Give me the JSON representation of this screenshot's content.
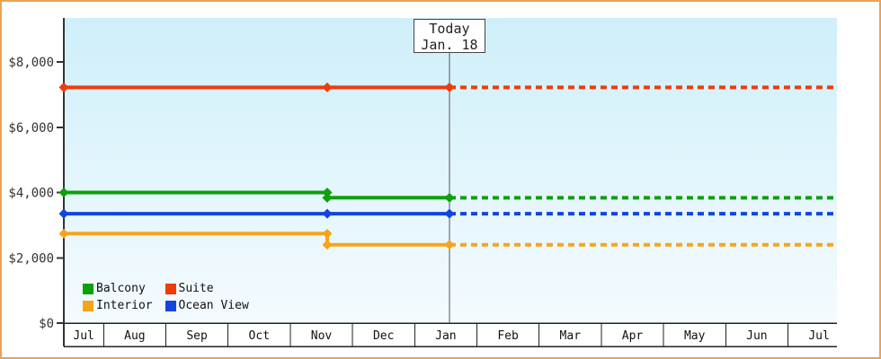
{
  "frame": {
    "border_color": "#eaa257"
  },
  "legend": {
    "items": [
      {
        "label": "Balcony",
        "color": "#0ca00c"
      },
      {
        "label": "Suite",
        "color": "#ef3b0c"
      },
      {
        "label": "Interior",
        "color": "#f5a51d"
      },
      {
        "label": "Ocean View",
        "color": "#1245e0"
      }
    ]
  },
  "chart_data": {
    "type": "line",
    "title": "",
    "xlabel": "",
    "ylabel": "",
    "x_categories": [
      "Jul",
      "Aug",
      "Sep",
      "Oct",
      "Nov",
      "Dec",
      "Jan",
      "Feb",
      "Mar",
      "Apr",
      "May",
      "Jun",
      "Jul"
    ],
    "y_ticks": [
      {
        "value": 0,
        "label": "$0"
      },
      {
        "value": 2000,
        "label": "$2,000"
      },
      {
        "value": 4000,
        "label": "$4,000"
      },
      {
        "value": 6000,
        "label": "$6,000"
      },
      {
        "value": 8000,
        "label": "$8,000"
      }
    ],
    "ylim": [
      0,
      9350
    ],
    "grid": false,
    "legend_position": "bottom-left-inside",
    "plot_bg_gradient": [
      "#cfeffa",
      "#f4fbfe"
    ],
    "today": {
      "label": "Today",
      "date": "Jan. 18",
      "x_frac": 0.4988
    },
    "series": [
      {
        "name": "Balcony",
        "color": "#0ca00c",
        "future_value": 3840,
        "points": [
          {
            "x_frac": 0.0,
            "value": 4000
          },
          {
            "x_frac": 0.3407,
            "value": 4000
          },
          {
            "x_frac": 0.3407,
            "value": 3840
          },
          {
            "x_frac": 0.4988,
            "value": 3840
          }
        ]
      },
      {
        "name": "Suite",
        "color": "#ef3b0c",
        "future_value": 7220,
        "points": [
          {
            "x_frac": 0.0,
            "value": 7220
          },
          {
            "x_frac": 0.3407,
            "value": 7220
          },
          {
            "x_frac": 0.4988,
            "value": 7220
          }
        ]
      },
      {
        "name": "Interior",
        "color": "#f5a51d",
        "future_value": 2400,
        "points": [
          {
            "x_frac": 0.0,
            "value": 2740
          },
          {
            "x_frac": 0.3407,
            "value": 2740
          },
          {
            "x_frac": 0.3407,
            "value": 2400
          },
          {
            "x_frac": 0.4988,
            "value": 2400
          }
        ]
      },
      {
        "name": "Ocean View",
        "color": "#1245e0",
        "future_value": 3350,
        "points": [
          {
            "x_frac": 0.0,
            "value": 3350
          },
          {
            "x_frac": 0.3407,
            "value": 3350
          },
          {
            "x_frac": 0.4988,
            "value": 3350
          }
        ]
      }
    ]
  }
}
